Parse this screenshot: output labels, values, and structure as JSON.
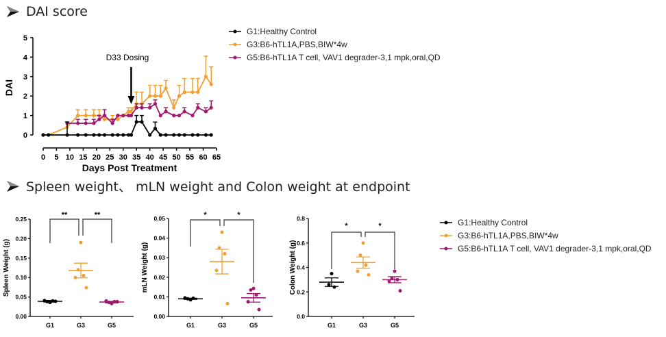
{
  "headings": {
    "dai": "DAI score",
    "weights": "Spleen weight、 mLN weight and Colon weight at endpoint"
  },
  "colors": {
    "G1": "#000000",
    "G3": "#f0a030",
    "G5": "#a0186e"
  },
  "legend_top": [
    {
      "group": "G1",
      "label": "G1:Healthy Control"
    },
    {
      "group": "G3",
      "label": "G3:B6-hTL1A,PBS,BIW*4w"
    },
    {
      "group": "G5",
      "label": "G5:B6-hTL1A T cell, VAV1 degrader-3,1 mpk,oral,QD"
    }
  ],
  "legend_bottom": [
    {
      "group": "G1",
      "label": "G1:Healthy Control"
    },
    {
      "group": "G3",
      "label": "G3:B6-hTL1A,PBS,BIW*4w"
    },
    {
      "group": "G5",
      "label": "G5:B6-hTL1A T cell, VAV1 degrader-3,1 mpk,oral,QD"
    }
  ],
  "chart_data": [
    {
      "type": "line",
      "title": "DAI score",
      "xlabel": "Days Post Treatment",
      "ylabel": "DAI",
      "xlim": [
        0,
        65
      ],
      "ylim": [
        0,
        5
      ],
      "xticks": [
        "0",
        "5",
        "10",
        "15",
        "20",
        "25",
        "30",
        "35",
        "40",
        "45",
        "50",
        "55",
        "60",
        "65"
      ],
      "yticks": [
        "0",
        "1",
        "2",
        "3",
        "4",
        "5"
      ],
      "annotation": {
        "text": "D33 Dosing",
        "x": 33
      },
      "grid": false,
      "legend_position": "right",
      "x": [
        0,
        2,
        9,
        13,
        16,
        19,
        21,
        23,
        26,
        28,
        30,
        32,
        33,
        35,
        37,
        40,
        42,
        44,
        46,
        49,
        51,
        53,
        56,
        58,
        61,
        63
      ],
      "series": [
        {
          "name": "G1:Healthy Control",
          "group": "G1",
          "values": [
            0,
            0,
            0,
            0,
            0,
            0,
            0,
            0,
            0,
            0,
            0,
            0,
            0,
            0.67,
            0.67,
            0,
            0.33,
            0,
            0,
            0,
            0,
            0,
            0,
            0,
            0,
            0
          ],
          "err": [
            0,
            0,
            0.67,
            0,
            0,
            0,
            0,
            0,
            0,
            0,
            0,
            0,
            0,
            0.33,
            0.33,
            0,
            0.33,
            0,
            0,
            0,
            0,
            0,
            0,
            0,
            0,
            0
          ],
          "start_x": [
            0,
            2,
            9
          ]
        },
        {
          "name": "G3:B6-hTL1A,PBS,BIW*4w",
          "group": "G3",
          "values": [
            0,
            0,
            0.4,
            1.0,
            1.0,
            1.0,
            1.0,
            0.8,
            0.8,
            0.8,
            1.0,
            1.2,
            1.2,
            1.6,
            1.6,
            2.0,
            2.0,
            2.0,
            2.4,
            1.4,
            2.0,
            2.2,
            2.2,
            2.2,
            3.0,
            2.6
          ],
          "err": [
            0,
            0,
            0,
            0.3,
            0.3,
            0.3,
            0.3,
            0.2,
            0.2,
            0.2,
            0,
            0.2,
            0.2,
            0.6,
            0.6,
            0.55,
            0.55,
            0.55,
            0.4,
            0.4,
            0.55,
            0.7,
            0.7,
            0.7,
            1.05,
            0.9
          ]
        },
        {
          "name": "G5:B6-hTL1A T cell, VAV1 degrader-3,1 mpk,oral,QD",
          "group": "G5",
          "values": [
            null,
            null,
            0.6,
            0.6,
            0.6,
            0.6,
            0.8,
            1.0,
            0.6,
            1.0,
            1.0,
            1.0,
            1.0,
            1.4,
            1.4,
            1.4,
            1.6,
            1.0,
            1.2,
            1.0,
            1.0,
            1.2,
            1.0,
            1.4,
            1.2,
            1.4
          ],
          "err": [
            0,
            0,
            0,
            0.2,
            0.2,
            0.2,
            0.2,
            0.3,
            0.2,
            0,
            0,
            0,
            0,
            0.2,
            0.2,
            0.2,
            0.2,
            0,
            0.2,
            0,
            0,
            0.2,
            0,
            0.2,
            0.2,
            0.35
          ]
        }
      ]
    },
    {
      "type": "scatter",
      "title": "Spleen Weight",
      "ylabel": "Spleen Weight (g)",
      "categories": [
        "G1",
        "G3",
        "G5"
      ],
      "ylim": [
        0,
        0.25
      ],
      "yticks": [
        "0.00",
        "0.05",
        "0.10",
        "0.15",
        "0.20",
        "0.25"
      ],
      "points": {
        "G1": [
          0.036,
          0.038,
          0.04,
          0.041,
          0.039
        ],
        "G3": [
          0.19,
          0.12,
          0.105,
          0.1,
          0.074
        ],
        "G5": [
          0.033,
          0.036,
          0.038,
          0.04,
          0.038
        ]
      },
      "mean": {
        "G1": 0.039,
        "G3": 0.118,
        "G5": 0.037
      },
      "sem": {
        "G1": 0.002,
        "G3": 0.019,
        "G5": 0.002
      },
      "significance": [
        {
          "pair": [
            "G1",
            "G3"
          ],
          "label": "**"
        },
        {
          "pair": [
            "G3",
            "G5"
          ],
          "label": "**"
        }
      ]
    },
    {
      "type": "scatter",
      "title": "mLN Weight",
      "ylabel": "mLN Weight (g)",
      "categories": [
        "G1",
        "G3",
        "G5"
      ],
      "ylim": [
        0,
        0.05
      ],
      "yticks": [
        "0.00",
        "0.01",
        "0.02",
        "0.03",
        "0.04",
        "0.05"
      ],
      "points": {
        "G1": [
          0.0085,
          0.009,
          0.0093,
          0.0095
        ],
        "G3": [
          0.043,
          0.035,
          0.032,
          0.0235,
          0.0065
        ],
        "G5": [
          0.0143,
          0.0135,
          0.011,
          0.0075,
          0.0035
        ]
      },
      "mean": {
        "G1": 0.009,
        "G3": 0.028,
        "G5": 0.0095
      },
      "sem": {
        "G1": 0.0003,
        "G3": 0.0063,
        "G5": 0.0022
      },
      "significance": [
        {
          "pair": [
            "G1",
            "G3"
          ],
          "label": "*"
        },
        {
          "pair": [
            "G3",
            "G5"
          ],
          "label": "*"
        }
      ]
    },
    {
      "type": "scatter",
      "title": "Colon Weight",
      "ylabel": "Colon Weight (g)",
      "categories": [
        "G1",
        "G3",
        "G5"
      ],
      "ylim": [
        0,
        0.8
      ],
      "yticks": [
        "0.0",
        "0.2",
        "0.4",
        "0.6",
        "0.8"
      ],
      "points": {
        "G1": [
          0.35,
          0.26,
          0.24
        ],
        "G3": [
          0.6,
          0.5,
          0.42,
          0.37,
          0.34
        ],
        "G5": [
          0.37,
          0.31,
          0.3,
          0.29,
          0.21
        ]
      },
      "mean": {
        "G1": 0.28,
        "G3": 0.44,
        "G5": 0.3
      },
      "sem": {
        "G1": 0.035,
        "G3": 0.046,
        "G5": 0.025
      },
      "significance": [
        {
          "pair": [
            "G1",
            "G3"
          ],
          "label": "*"
        },
        {
          "pair": [
            "G3",
            "G5"
          ],
          "label": "*"
        }
      ]
    }
  ]
}
